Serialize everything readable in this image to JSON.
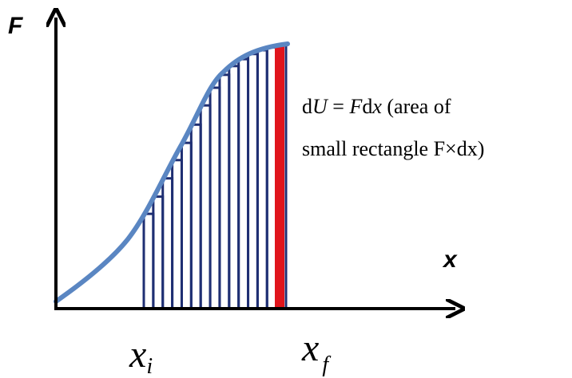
{
  "axes": {
    "y_label": "F",
    "x_label": "x"
  },
  "limits": {
    "start": {
      "base": "x",
      "sub": "i"
    },
    "end": {
      "base": "x",
      "sub": "f"
    }
  },
  "annotation": {
    "line1": {
      "d": "d",
      "U": "U",
      "eq": " = ",
      "F": "F",
      "dx_d": "d",
      "dx_x": "x",
      "rest": " (area of"
    },
    "line2": "small rectangle  F×dx)"
  },
  "colors": {
    "curve": "#5a86c2",
    "strips": "#1f2f73",
    "highlight": "#e0151c",
    "axis": "#000000"
  }
}
